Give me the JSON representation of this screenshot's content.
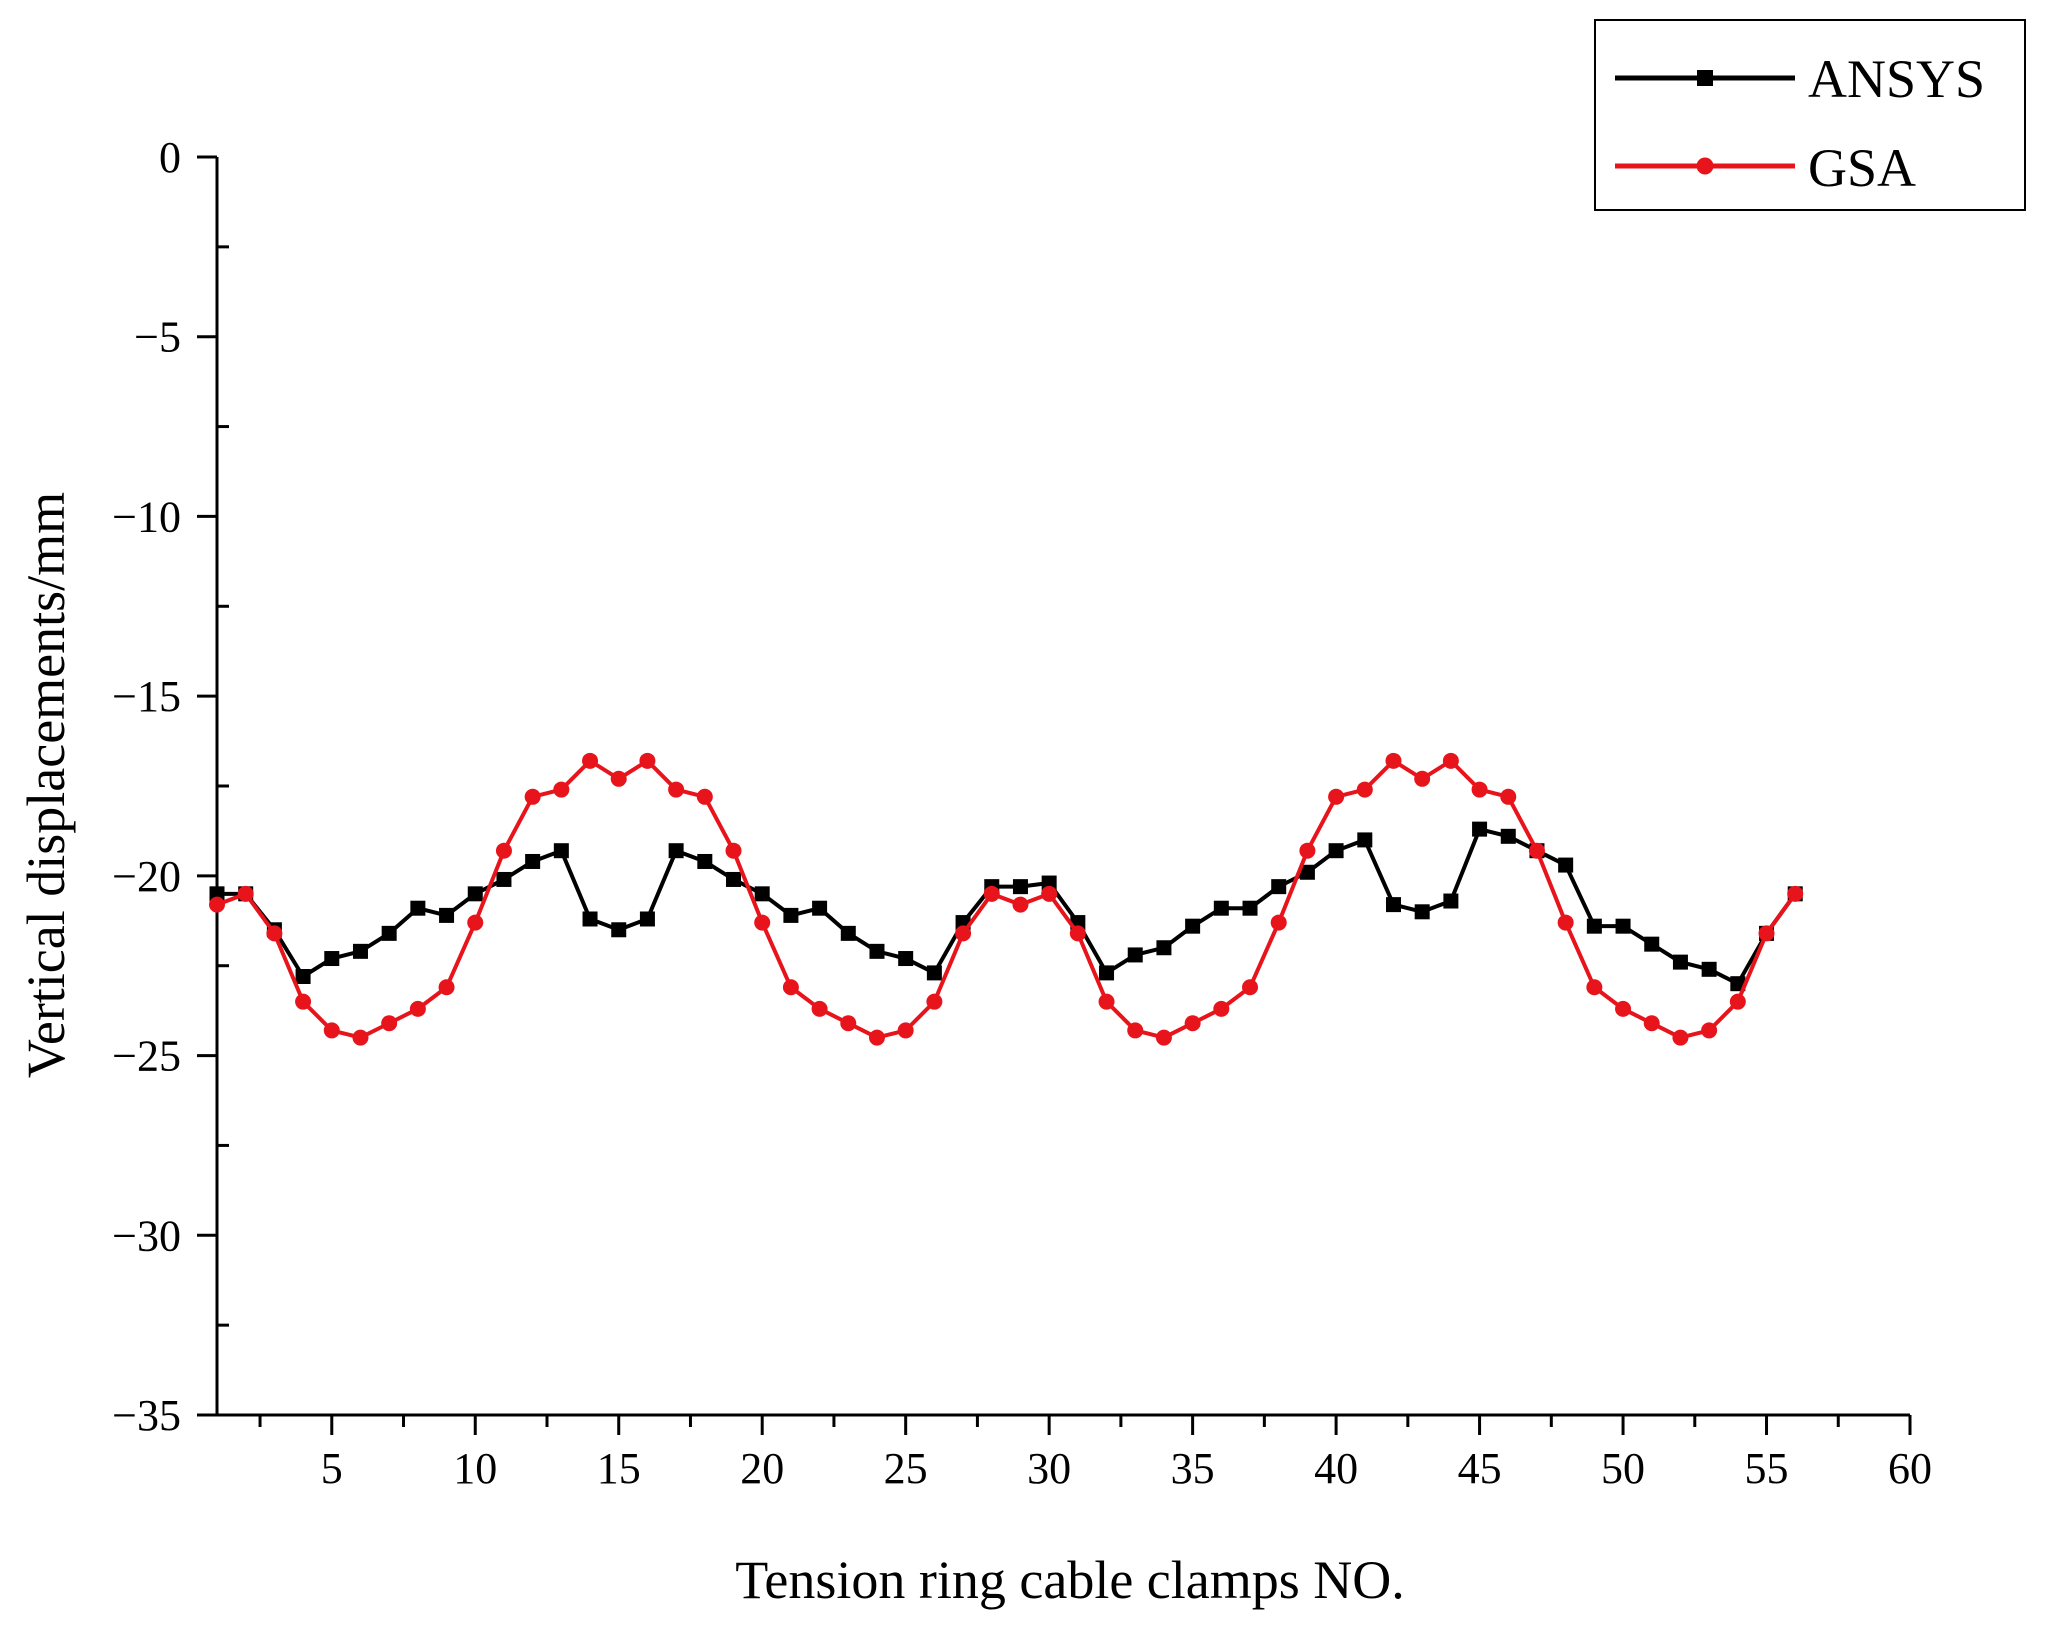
{
  "chart_data": {
    "type": "line",
    "title": "",
    "xlabel": "Tension ring cable clamps NO.",
    "ylabel": "Vertical displacements/mm",
    "xlim": [
      1,
      60
    ],
    "ylim": [
      -35,
      0
    ],
    "xticks": [
      5,
      10,
      15,
      20,
      25,
      30,
      35,
      40,
      45,
      50,
      55,
      60
    ],
    "xtick_labels": [
      "5",
      "10",
      "15",
      "20",
      "25",
      "30",
      "35",
      "40",
      "45",
      "50",
      "55",
      "60"
    ],
    "yticks": [
      0,
      -5,
      -10,
      -15,
      -20,
      -25,
      -30,
      -35
    ],
    "ytick_labels": [
      "0",
      "−5",
      "−10",
      "−15",
      "−20",
      "−25",
      "−30",
      "−35"
    ],
    "grid": false,
    "legend_position": "top-right",
    "x": [
      1,
      2,
      3,
      4,
      5,
      6,
      7,
      8,
      9,
      10,
      11,
      12,
      13,
      14,
      15,
      16,
      17,
      18,
      19,
      20,
      21,
      22,
      23,
      24,
      25,
      26,
      27,
      28,
      29,
      30,
      31,
      32,
      33,
      34,
      35,
      36,
      37,
      38,
      39,
      40,
      41,
      42,
      43,
      44,
      45,
      46,
      47,
      48,
      49,
      50,
      51,
      52,
      53,
      54,
      55,
      56
    ],
    "series": [
      {
        "name": "ANSYS",
        "color": "#000000",
        "marker": "square",
        "values": [
          -20.5,
          -20.5,
          -21.5,
          -22.8,
          -22.3,
          -22.1,
          -21.6,
          -20.9,
          -21.1,
          -20.5,
          -20.1,
          -19.6,
          -19.3,
          -21.2,
          -21.5,
          -21.2,
          -19.3,
          -19.6,
          -20.1,
          -20.5,
          -21.1,
          -20.9,
          -21.6,
          -22.1,
          -22.3,
          -22.7,
          -21.3,
          -20.3,
          -20.3,
          -20.2,
          -21.3,
          -22.7,
          -22.2,
          -22.0,
          -21.4,
          -20.9,
          -20.9,
          -20.3,
          -19.9,
          -19.3,
          -19.0,
          -20.8,
          -21.0,
          -20.7,
          -18.7,
          -18.9,
          -19.3,
          -19.7,
          -21.4,
          -21.4,
          -21.9,
          -22.4,
          -22.6,
          -23.0,
          -21.6,
          -20.5
        ]
      },
      {
        "name": "GSA",
        "color": "#e8141c",
        "marker": "circle",
        "values": [
          -20.8,
          -20.5,
          -21.6,
          -23.5,
          -24.3,
          -24.5,
          -24.1,
          -23.7,
          -23.1,
          -21.3,
          -19.3,
          -17.8,
          -17.6,
          -16.8,
          -17.3,
          -16.8,
          -17.6,
          -17.8,
          -19.3,
          -21.3,
          -23.1,
          -23.7,
          -24.1,
          -24.5,
          -24.3,
          -23.5,
          -21.6,
          -20.5,
          -20.8,
          -20.5,
          -21.6,
          -23.5,
          -24.3,
          -24.5,
          -24.1,
          -23.7,
          -23.1,
          -21.3,
          -19.3,
          -17.8,
          -17.6,
          -16.8,
          -17.3,
          -16.8,
          -17.6,
          -17.8,
          -19.3,
          -21.3,
          -23.1,
          -23.7,
          -24.1,
          -24.5,
          -24.3,
          -23.5,
          -21.6,
          -20.5
        ]
      }
    ]
  }
}
